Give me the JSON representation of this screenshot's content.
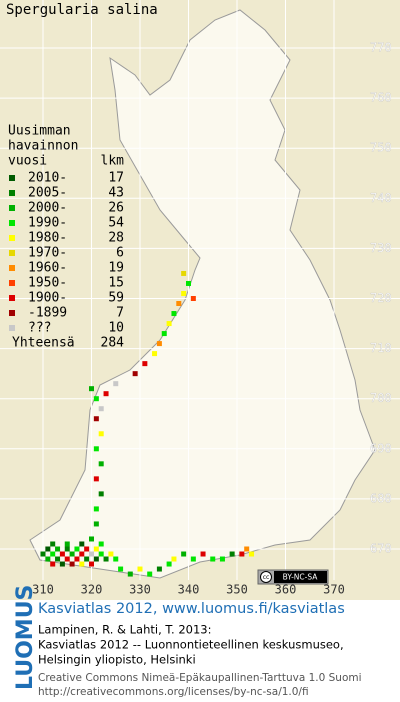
{
  "title": "Spergularia salina",
  "legend": {
    "header": [
      "Uusimman",
      "havainnon"
    ],
    "year_head": "vuosi",
    "count_head": "lkm",
    "rows": [
      {
        "label": "2010-",
        "count": 17,
        "color": "#005a00"
      },
      {
        "label": "2005-",
        "count": 43,
        "color": "#008000"
      },
      {
        "label": "2000-",
        "count": 26,
        "color": "#00b000"
      },
      {
        "label": "1990-",
        "count": 54,
        "color": "#00e600"
      },
      {
        "label": "1980-",
        "count": 28,
        "color": "#ffff00"
      },
      {
        "label": "1970-",
        "count": 6,
        "color": "#e6d800"
      },
      {
        "label": "1960-",
        "count": 19,
        "color": "#ff8c00"
      },
      {
        "label": "1950-",
        "count": 15,
        "color": "#ff4000"
      },
      {
        "label": "1900-",
        "count": 59,
        "color": "#dd0000"
      },
      {
        "label": "-1899",
        "count": 7,
        "color": "#a00000"
      },
      {
        "label": "???",
        "count": 10,
        "color": "#c8c8c8"
      }
    ],
    "total_label": "Yhteensä",
    "total": 284
  },
  "grid": {
    "eastings": [
      310,
      320,
      330,
      340,
      350,
      360,
      370
    ],
    "northings": [
      770,
      760,
      750,
      740,
      730,
      720,
      710,
      700,
      690,
      680,
      670
    ]
  },
  "cells": [
    [
      310,
      669,
      1
    ],
    [
      311,
      668,
      2
    ],
    [
      311,
      670,
      0
    ],
    [
      312,
      669,
      3
    ],
    [
      312,
      667,
      8
    ],
    [
      313,
      668,
      1
    ],
    [
      313,
      670,
      2
    ],
    [
      314,
      669,
      8
    ],
    [
      314,
      667,
      0
    ],
    [
      315,
      668,
      8
    ],
    [
      315,
      670,
      1
    ],
    [
      316,
      669,
      2
    ],
    [
      316,
      667,
      9
    ],
    [
      317,
      668,
      8
    ],
    [
      317,
      670,
      3
    ],
    [
      318,
      669,
      8
    ],
    [
      318,
      667,
      4
    ],
    [
      319,
      668,
      1
    ],
    [
      319,
      670,
      8
    ],
    [
      320,
      669,
      10
    ],
    [
      320,
      667,
      8
    ],
    [
      321,
      668,
      0
    ],
    [
      321,
      670,
      4
    ],
    [
      322,
      669,
      3
    ],
    [
      323,
      668,
      1
    ],
    [
      324,
      669,
      4
    ],
    [
      325,
      668,
      3
    ],
    [
      312,
      671,
      1
    ],
    [
      315,
      671,
      2
    ],
    [
      318,
      671,
      0
    ],
    [
      320,
      672,
      2
    ],
    [
      322,
      671,
      3
    ],
    [
      326,
      666,
      3
    ],
    [
      328,
      665,
      2
    ],
    [
      330,
      666,
      4
    ],
    [
      332,
      665,
      3
    ],
    [
      334,
      666,
      1
    ],
    [
      336,
      667,
      3
    ],
    [
      337,
      668,
      4
    ],
    [
      339,
      669,
      2
    ],
    [
      341,
      668,
      3
    ],
    [
      343,
      669,
      8
    ],
    [
      345,
      668,
      3
    ],
    [
      347,
      668,
      3
    ],
    [
      349,
      669,
      1
    ],
    [
      351,
      669,
      8
    ],
    [
      352,
      670,
      6
    ],
    [
      353,
      669,
      4
    ],
    [
      321,
      675,
      2
    ],
    [
      321,
      678,
      3
    ],
    [
      322,
      681,
      1
    ],
    [
      321,
      684,
      8
    ],
    [
      322,
      687,
      2
    ],
    [
      321,
      690,
      3
    ],
    [
      322,
      693,
      4
    ],
    [
      321,
      696,
      9
    ],
    [
      322,
      698,
      10
    ],
    [
      321,
      700,
      3
    ],
    [
      320,
      702,
      2
    ],
    [
      323,
      701,
      8
    ],
    [
      325,
      703,
      10
    ],
    [
      329,
      705,
      9
    ],
    [
      331,
      707,
      8
    ],
    [
      333,
      709,
      4
    ],
    [
      334,
      711,
      6
    ],
    [
      335,
      713,
      3
    ],
    [
      336,
      715,
      4
    ],
    [
      337,
      717,
      3
    ],
    [
      338,
      719,
      6
    ],
    [
      339,
      721,
      4
    ],
    [
      341,
      720,
      7
    ],
    [
      340,
      723,
      3
    ],
    [
      339,
      725,
      5
    ]
  ],
  "license_badge": "BY-NC-SA",
  "credits": {
    "logo": "LUOMUS",
    "link": "Kasviatlas 2012, www.luomus.fi/kasviatlas",
    "citation": [
      "Lampinen, R. & Lahti, T. 2013:",
      "Kasviatlas 2012 -- Luonnontieteellinen keskusmuseo,",
      "Helsingin yliopisto, Helsinki"
    ],
    "license": [
      "Creative Commons Nimeä-Epäkaupallinen-Tarttuva 1.0 Suomi",
      "http://creativecommons.org/licenses/by-nc-sa/1.0/fi"
    ]
  }
}
